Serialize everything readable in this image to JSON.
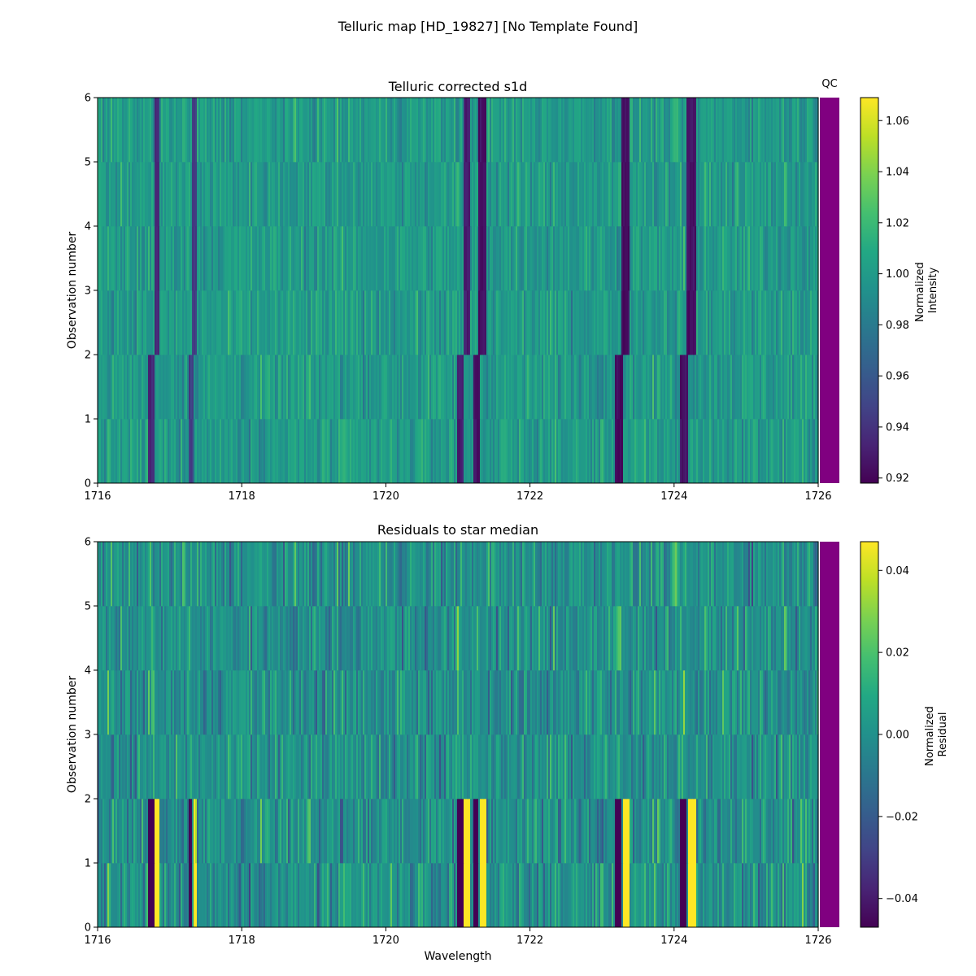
{
  "figure": {
    "suptitle": "Telluric map [HD_19827] [No Template Found]"
  },
  "chart_data": [
    {
      "type": "heatmap",
      "title": "Telluric corrected s1d",
      "xlabel": "",
      "ylabel": "Observation number",
      "xlim": [
        1716,
        1726
      ],
      "ylim": [
        0,
        6
      ],
      "xticks": [
        "1716",
        "1718",
        "1720",
        "1722",
        "1724",
        "1726"
      ],
      "yticks": [
        "0",
        "1",
        "2",
        "3",
        "4",
        "5",
        "6"
      ],
      "rows": 6,
      "colormap": "viridis",
      "colorbar": {
        "label_line1": "Normalized",
        "label_line2": "Intensity",
        "vmin": 0.918,
        "vmax": 1.069,
        "ticks": [
          "0.92",
          "0.94",
          "0.96",
          "0.98",
          "1.00",
          "1.02",
          "1.04",
          "1.06"
        ]
      },
      "qc": {
        "label": "QC",
        "color": "#800080"
      },
      "absorption_lines": [
        {
          "center_rows_0_1": 1716.74,
          "center_rows_2_5": 1716.82,
          "width": 0.08,
          "value": 0.93
        },
        {
          "center_rows_0_1": 1717.3,
          "center_rows_2_5": 1717.35,
          "width": 0.06,
          "value": 0.94
        },
        {
          "center_rows_0_1": 1721.04,
          "center_rows_2_5": 1721.12,
          "width": 0.08,
          "value": 0.925
        },
        {
          "center_rows_0_1": 1721.26,
          "center_rows_2_5": 1721.34,
          "width": 0.1,
          "value": 0.92
        },
        {
          "center_rows_0_1": 1723.24,
          "center_rows_2_5": 1723.32,
          "width": 0.12,
          "value": 0.918
        },
        {
          "center_rows_0_1": 1724.14,
          "center_rows_2_5": 1724.24,
          "width": 0.12,
          "value": 0.92
        }
      ]
    },
    {
      "type": "heatmap",
      "title": "Residuals to star median",
      "xlabel": "Wavelength",
      "ylabel": "Observation number",
      "xlim": [
        1716,
        1726
      ],
      "ylim": [
        0,
        6
      ],
      "xticks": [
        "1716",
        "1718",
        "1720",
        "1722",
        "1724",
        "1726"
      ],
      "yticks": [
        "0",
        "1",
        "2",
        "3",
        "4",
        "5",
        "6"
      ],
      "rows": 6,
      "colormap": "viridis",
      "colorbar": {
        "label_line1": "Normalized",
        "label_line2": "Residual",
        "vmin": -0.047,
        "vmax": 0.047,
        "ticks": [
          "−0.04",
          "−0.02",
          "0.00",
          "0.02",
          "0.04"
        ]
      },
      "qc": {
        "label": "",
        "color": "#800080"
      }
    }
  ]
}
